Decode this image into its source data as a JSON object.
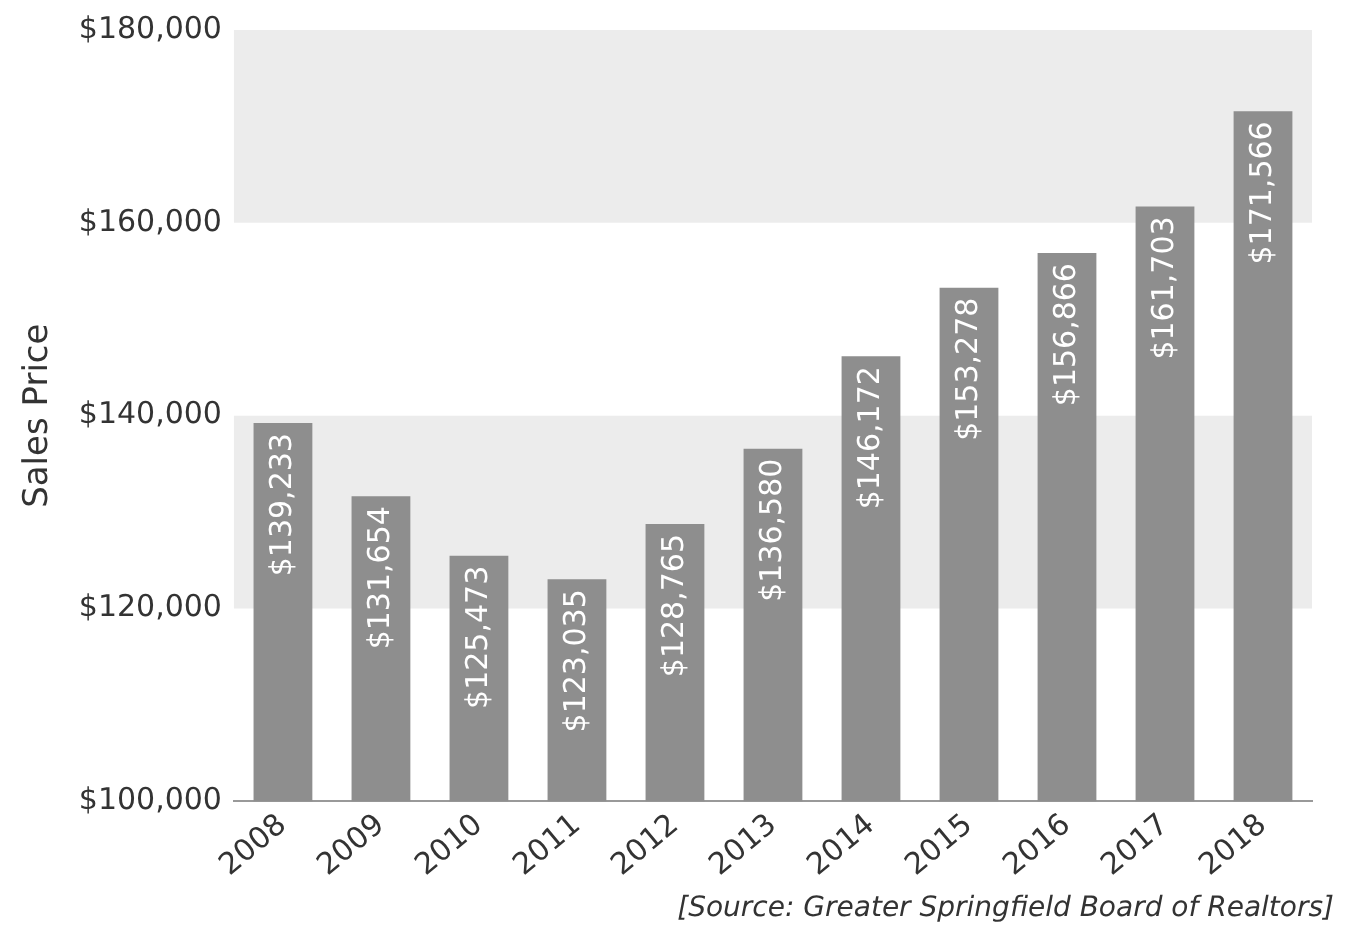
{
  "chart_data": {
    "type": "bar",
    "ylabel": "Sales Price",
    "categories": [
      "2008",
      "2009",
      "2010",
      "2011",
      "2012",
      "2013",
      "2014",
      "2015",
      "2016",
      "2017",
      "2018"
    ],
    "values": [
      139233,
      131654,
      125473,
      123035,
      128765,
      136580,
      146172,
      153278,
      156866,
      161703,
      171566
    ],
    "value_labels": [
      "$139,233",
      "$131,654",
      "$125,473",
      "$123,035",
      "$128,765",
      "$136,580",
      "$146,172",
      "$153,278",
      "$156,866",
      "$161,703",
      "$171,566"
    ],
    "color": "#8e8e8e",
    "ylim": [
      100000,
      180000
    ],
    "yticks": [
      {
        "value": 100000,
        "label": "$100,000"
      },
      {
        "value": 120000,
        "label": "$120,000"
      },
      {
        "value": 140000,
        "label": "$140,000"
      },
      {
        "value": 160000,
        "label": "$160,000"
      },
      {
        "value": 180000,
        "label": "$180,000"
      }
    ],
    "bands": [
      {
        "axis": "y",
        "from": 120000,
        "to": 140000,
        "color": "#ececec"
      },
      {
        "axis": "y",
        "from": 160000,
        "to": 180000,
        "color": "#ececec"
      }
    ],
    "grid": false,
    "legend": false,
    "annotations": [
      "[Source: Greater Springfield Board of Realtors]"
    ]
  }
}
